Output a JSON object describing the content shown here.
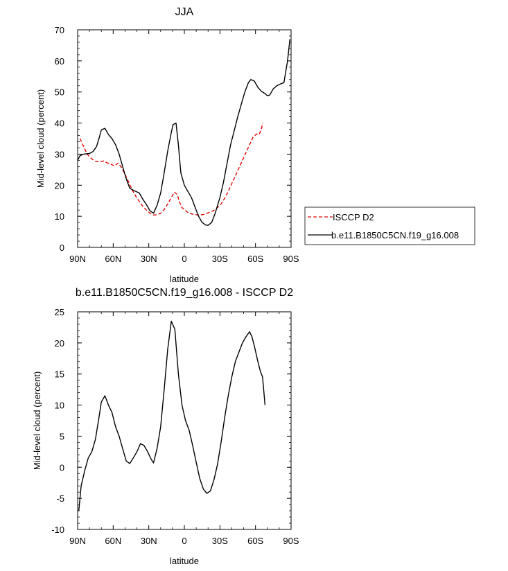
{
  "chart_data": [
    {
      "type": "line",
      "title": "JJA",
      "xlabel": "latitude",
      "ylabel": "Mid-level cloud (percent)",
      "xlim": [
        -90,
        90
      ],
      "ylim": [
        0,
        70
      ],
      "xticks": [
        -90,
        -60,
        -30,
        0,
        30,
        60,
        90
      ],
      "xtick_labels": [
        "90N",
        "60N",
        "30N",
        "0",
        "30S",
        "60S",
        "90S"
      ],
      "yticks": [
        0,
        10,
        20,
        30,
        40,
        50,
        60,
        70
      ],
      "ytick_labels": [
        "0",
        "10",
        "20",
        "30",
        "40",
        "50",
        "60",
        "70"
      ],
      "legend_position": "right",
      "series": [
        {
          "name": "ISCCP D2",
          "color": "#e00000",
          "dash": true,
          "points": [
            [
              -88,
              35
            ],
            [
              -85,
              32.5
            ],
            [
              -82,
              30
            ],
            [
              -78,
              28.5
            ],
            [
              -75,
              27.7
            ],
            [
              -72,
              27.5
            ],
            [
              -68,
              27.8
            ],
            [
              -65,
              27.2
            ],
            [
              -62,
              26.8
            ],
            [
              -59,
              26.2
            ],
            [
              -56,
              27.1
            ],
            [
              -53,
              25.8
            ],
            [
              -50,
              23.5
            ],
            [
              -47,
              21
            ],
            [
              -44,
              18.5
            ],
            [
              -41,
              16.5
            ],
            [
              -38,
              14.8
            ],
            [
              -35,
              13.2
            ],
            [
              -32,
              12
            ],
            [
              -29,
              11
            ],
            [
              -26,
              10.4
            ],
            [
              -23,
              10.5
            ],
            [
              -20,
              11
            ],
            [
              -17,
              12.2
            ],
            [
              -14,
              14
            ],
            [
              -11,
              16
            ],
            [
              -8.5,
              17.8
            ],
            [
              -6,
              17
            ],
            [
              -4,
              14.5
            ],
            [
              -2,
              12.8
            ],
            [
              1,
              11.8
            ],
            [
              4,
              11
            ],
            [
              8,
              10.6
            ],
            [
              12,
              10.4
            ],
            [
              16,
              10.6
            ],
            [
              20,
              11.1
            ],
            [
              24,
              11.7
            ],
            [
              28,
              12.8
            ],
            [
              31,
              14
            ],
            [
              34,
              15.8
            ],
            [
              37,
              18
            ],
            [
              40,
              20.5
            ],
            [
              43,
              23
            ],
            [
              46,
              25.5
            ],
            [
              49,
              28
            ],
            [
              52,
              30.5
            ],
            [
              55,
              33
            ],
            [
              58,
              35.5
            ],
            [
              61,
              36.5
            ],
            [
              63,
              36.3
            ],
            [
              65,
              38
            ],
            [
              66,
              40
            ]
          ]
        },
        {
          "name": "b.e11.B1850C5CN.f19_g16.008",
          "color": "#000000",
          "dash": false,
          "points": [
            [
              -90,
              28
            ],
            [
              -88,
              29.5
            ],
            [
              -85,
              30
            ],
            [
              -80,
              30.2
            ],
            [
              -77,
              30.8
            ],
            [
              -74,
              32.5
            ],
            [
              -72,
              35
            ],
            [
              -70,
              37.8
            ],
            [
              -67,
              38.3
            ],
            [
              -64,
              36.3
            ],
            [
              -61,
              35
            ],
            [
              -58,
              33
            ],
            [
              -55,
              30
            ],
            [
              -52,
              26
            ],
            [
              -49,
              22
            ],
            [
              -46,
              19
            ],
            [
              -42,
              18.2
            ],
            [
              -38,
              17.5
            ],
            [
              -35,
              15.5
            ],
            [
              -32,
              13.8
            ],
            [
              -29,
              11.8
            ],
            [
              -26,
              11
            ],
            [
              -23,
              13.5
            ],
            [
              -20,
              17.5
            ],
            [
              -17,
              24
            ],
            [
              -14,
              31
            ],
            [
              -11,
              37
            ],
            [
              -9.5,
              39.5
            ],
            [
              -7,
              40
            ],
            [
              -5,
              33
            ],
            [
              -3,
              24
            ],
            [
              0,
              20
            ],
            [
              3,
              18
            ],
            [
              6,
              16
            ],
            [
              9,
              13
            ],
            [
              12,
              10
            ],
            [
              15,
              8
            ],
            [
              18,
              7.2
            ],
            [
              20,
              7.1
            ],
            [
              23,
              8
            ],
            [
              26,
              11
            ],
            [
              30,
              16
            ],
            [
              33,
              21
            ],
            [
              36,
              27
            ],
            [
              39,
              33
            ],
            [
              42,
              37.5
            ],
            [
              45,
              42
            ],
            [
              48,
              46
            ],
            [
              51,
              50
            ],
            [
              54,
              53
            ],
            [
              56,
              54
            ],
            [
              59,
              53.5
            ],
            [
              62,
              51.5
            ],
            [
              65,
              50.2
            ],
            [
              68,
              49.5
            ],
            [
              70,
              48.8
            ],
            [
              72,
              49
            ],
            [
              75,
              51
            ],
            [
              78,
              52
            ],
            [
              81,
              52.6
            ],
            [
              84,
              53
            ],
            [
              87,
              60
            ],
            [
              89,
              67
            ]
          ]
        }
      ]
    },
    {
      "type": "line",
      "title": "b.e11.B1850C5CN.f19_g16.008 - ISCCP D2",
      "xlabel": "latitude",
      "ylabel": "Mid-level cloud (percent)",
      "xlim": [
        -90,
        90
      ],
      "ylim": [
        -10,
        25
      ],
      "xticks": [
        -90,
        -60,
        -30,
        0,
        30,
        60,
        90
      ],
      "xtick_labels": [
        "90N",
        "60N",
        "30N",
        "0",
        "30S",
        "60S",
        "90S"
      ],
      "yticks": [
        -10,
        -5,
        0,
        5,
        10,
        15,
        20,
        25
      ],
      "ytick_labels": [
        "-10",
        "-5",
        "0",
        "5",
        "10",
        "15",
        "20",
        "25"
      ],
      "series": [
        {
          "color": "#000000",
          "dash": false,
          "points": [
            [
              -89,
              -7
            ],
            [
              -87,
              -3
            ],
            [
              -84,
              -0.5
            ],
            [
              -81,
              1.5
            ],
            [
              -78,
              2.5
            ],
            [
              -75,
              4.5
            ],
            [
              -72,
              8
            ],
            [
              -70,
              10.5
            ],
            [
              -67,
              11.5
            ],
            [
              -64,
              10
            ],
            [
              -61,
              8.8
            ],
            [
              -58,
              6.5
            ],
            [
              -55,
              5
            ],
            [
              -52,
              3
            ],
            [
              -49,
              1
            ],
            [
              -46,
              0.6
            ],
            [
              -43,
              1.5
            ],
            [
              -40,
              2.5
            ],
            [
              -37,
              3.8
            ],
            [
              -34,
              3.5
            ],
            [
              -31,
              2.5
            ],
            [
              -28,
              1.3
            ],
            [
              -26,
              0.7
            ],
            [
              -23,
              3
            ],
            [
              -20,
              6.5
            ],
            [
              -17,
              12.5
            ],
            [
              -14,
              19
            ],
            [
              -11,
              23.5
            ],
            [
              -8,
              22.2
            ],
            [
              -5,
              15
            ],
            [
              -2,
              10
            ],
            [
              1,
              7.5
            ],
            [
              4,
              6
            ],
            [
              7,
              3.5
            ],
            [
              10,
              0.8
            ],
            [
              13,
              -1.8
            ],
            [
              16,
              -3.5
            ],
            [
              19,
              -4.2
            ],
            [
              22,
              -3.8
            ],
            [
              25,
              -2
            ],
            [
              28,
              0.5
            ],
            [
              31,
              4
            ],
            [
              34,
              8
            ],
            [
              37,
              11.5
            ],
            [
              40,
              14.5
            ],
            [
              43,
              17
            ],
            [
              46,
              18.5
            ],
            [
              49,
              20
            ],
            [
              52,
              21
            ],
            [
              55,
              21.8
            ],
            [
              57,
              21
            ],
            [
              59,
              19.5
            ],
            [
              62,
              17
            ],
            [
              64,
              15.5
            ],
            [
              66,
              14.5
            ],
            [
              68,
              10
            ]
          ]
        }
      ]
    }
  ]
}
